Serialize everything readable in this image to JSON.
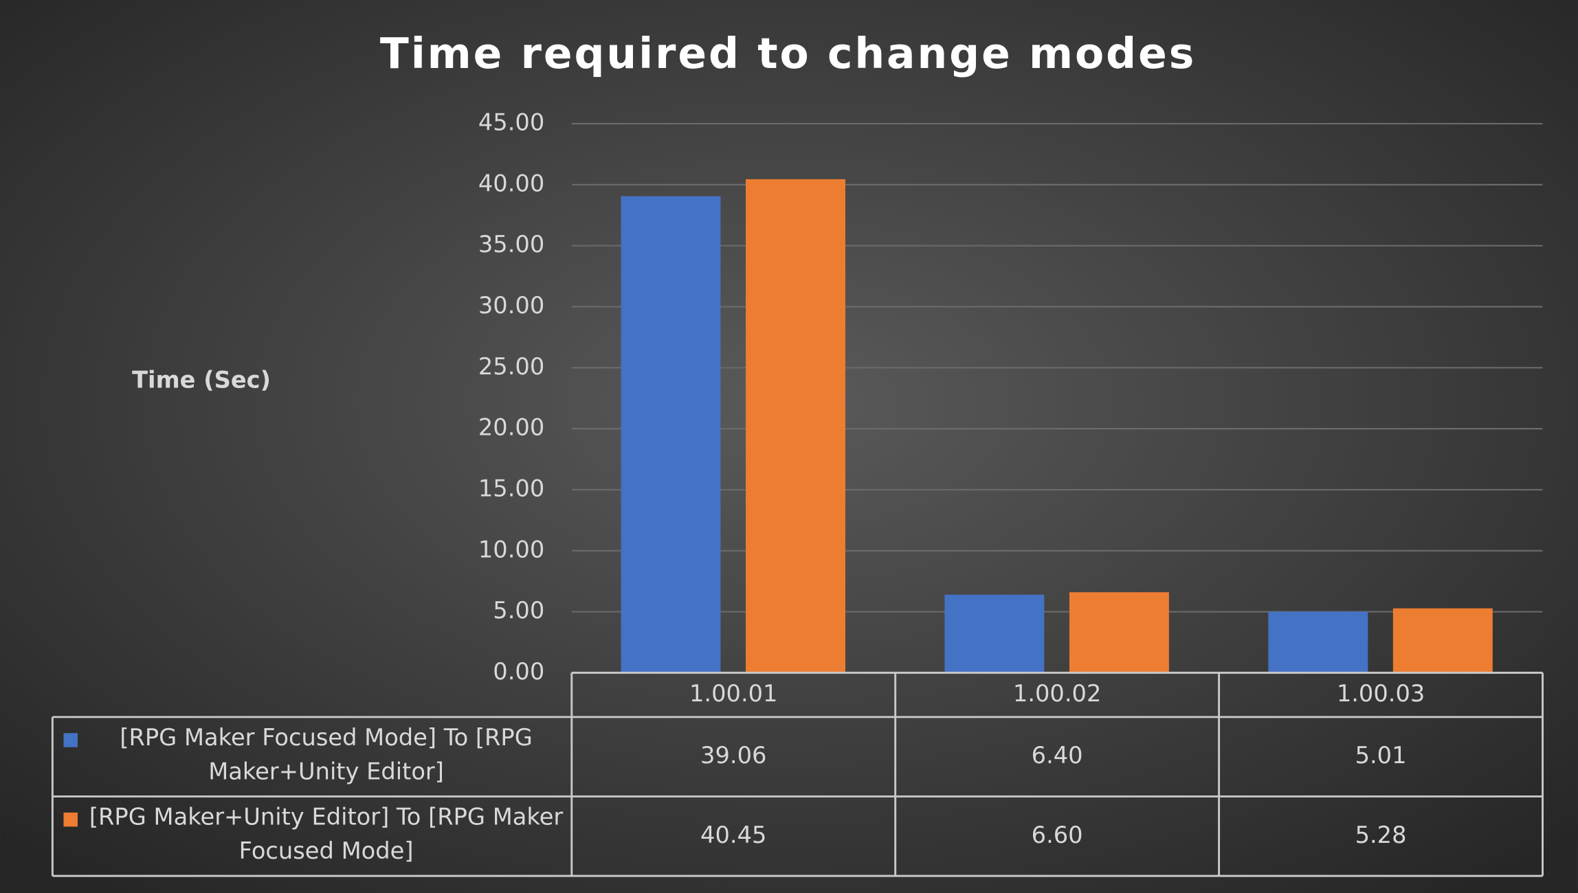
{
  "chart_data": {
    "type": "bar",
    "title": "Time required to change modes",
    "y_label": "Time (Sec)",
    "categories": [
      "1.00.01",
      "1.00.02",
      "1.00.03"
    ],
    "series": [
      {
        "name": "[RPG Maker Focused Mode] To [RPG Maker+Unity Editor]",
        "color": "#4472c4",
        "values": [
          39.06,
          6.4,
          5.01
        ],
        "value_labels": [
          "39.06",
          "6.40",
          "5.01"
        ]
      },
      {
        "name": "[RPG Maker+Unity Editor] To [RPG Maker Focused Mode]",
        "color": "#ed7d31",
        "values": [
          40.45,
          6.6,
          5.28
        ],
        "value_labels": [
          "40.45",
          "6.60",
          "5.28"
        ]
      }
    ],
    "ylim": [
      0,
      45
    ],
    "yticks": [
      {
        "value": 0,
        "label": "0.00"
      },
      {
        "value": 5,
        "label": "5.00"
      },
      {
        "value": 10,
        "label": "10.00"
      },
      {
        "value": 15,
        "label": "15.00"
      },
      {
        "value": 20,
        "label": "20.00"
      },
      {
        "value": 25,
        "label": "25.00"
      },
      {
        "value": 30,
        "label": "30.00"
      },
      {
        "value": 35,
        "label": "35.00"
      },
      {
        "value": 40,
        "label": "40.00"
      },
      {
        "value": 45,
        "label": "45.00"
      }
    ],
    "grid": true,
    "data_table": true
  }
}
